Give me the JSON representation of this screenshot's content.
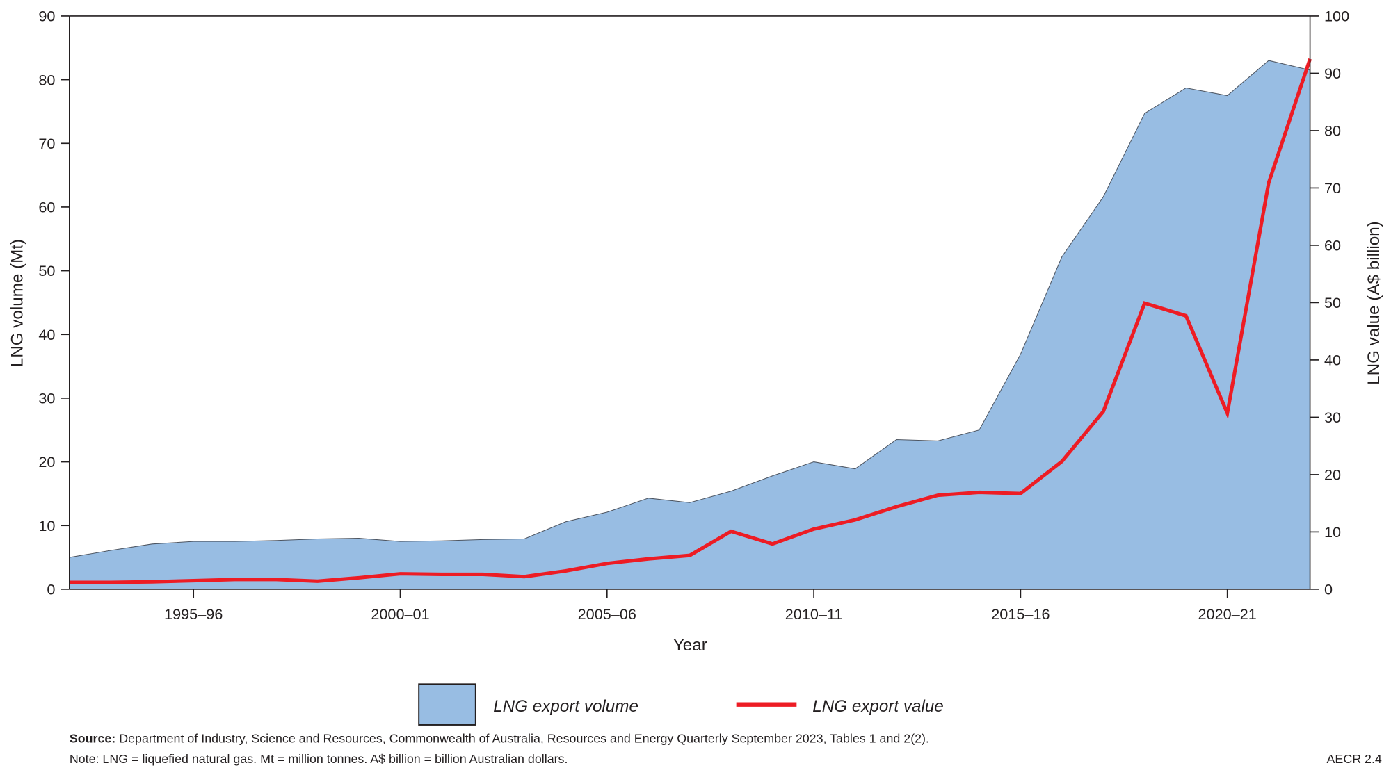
{
  "chart_data": {
    "type": "area+line",
    "xlabel": "Year",
    "ylabel_left": "LNG volume (Mt)",
    "ylabel_right": "LNG value (A$ billion)",
    "ylim_left": [
      0,
      90
    ],
    "ylim_right": [
      0,
      100
    ],
    "yticks_left": [
      0,
      10,
      20,
      30,
      40,
      50,
      60,
      70,
      80,
      90
    ],
    "yticks_right": [
      0,
      10,
      20,
      30,
      40,
      50,
      60,
      70,
      80,
      90,
      100
    ],
    "xtick_labels": [
      "1995–96",
      "2000–01",
      "2005–06",
      "2010–11",
      "2015–16",
      "2020–21"
    ],
    "grid": false,
    "legend_position": "bottom",
    "categories": [
      "1992–93",
      "1993–94",
      "1994–95",
      "1995–96",
      "1996–97",
      "1997–98",
      "1998–99",
      "1999–2000",
      "2000–01",
      "2001–02",
      "2002–03",
      "2003–04",
      "2004–05",
      "2005–06",
      "2006–07",
      "2007–08",
      "2008–09",
      "2009–10",
      "2010–11",
      "2011–12",
      "2012–13",
      "2013–14",
      "2014–15",
      "2015–16",
      "2016–17",
      "2017–18",
      "2018–19",
      "2019–20",
      "2020–21",
      "2021–22",
      "2022–23"
    ],
    "series": [
      {
        "name": "LNG export volume",
        "type": "area",
        "axis": "left",
        "color": "#98bde3",
        "values": [
          5.0,
          6.1,
          7.1,
          7.5,
          7.5,
          7.65,
          7.9,
          8.0,
          7.5,
          7.6,
          7.8,
          7.9,
          10.6,
          12.1,
          14.3,
          13.6,
          15.4,
          17.8,
          20.0,
          18.9,
          23.5,
          23.3,
          25.0,
          36.9,
          52.2,
          61.6,
          74.7,
          78.7,
          77.5,
          83.0,
          81.5
        ]
      },
      {
        "name": "LNG export value",
        "type": "line",
        "axis": "right",
        "color": "#ed1c24",
        "values": [
          1.2,
          1.2,
          1.3,
          1.5,
          1.7,
          1.7,
          1.4,
          2.0,
          2.7,
          2.6,
          2.6,
          2.2,
          3.2,
          4.5,
          5.3,
          5.9,
          10.1,
          7.9,
          10.5,
          12.1,
          14.4,
          16.4,
          16.9,
          16.7,
          22.3,
          31.0,
          49.9,
          47.7,
          30.7,
          70.9,
          92.5
        ]
      }
    ]
  },
  "footer": {
    "source_label": "Source:",
    "source_text": " Department of Industry, Science and Resources, Commonwealth of Australia, Resources and Energy Quarterly September 2023, Tables 1 and 2(2).",
    "note": "Note: LNG = liquefied natural gas. Mt = million tonnes. A$ billion = billion Australian dollars.",
    "figure_id": "AECR 2.4"
  }
}
